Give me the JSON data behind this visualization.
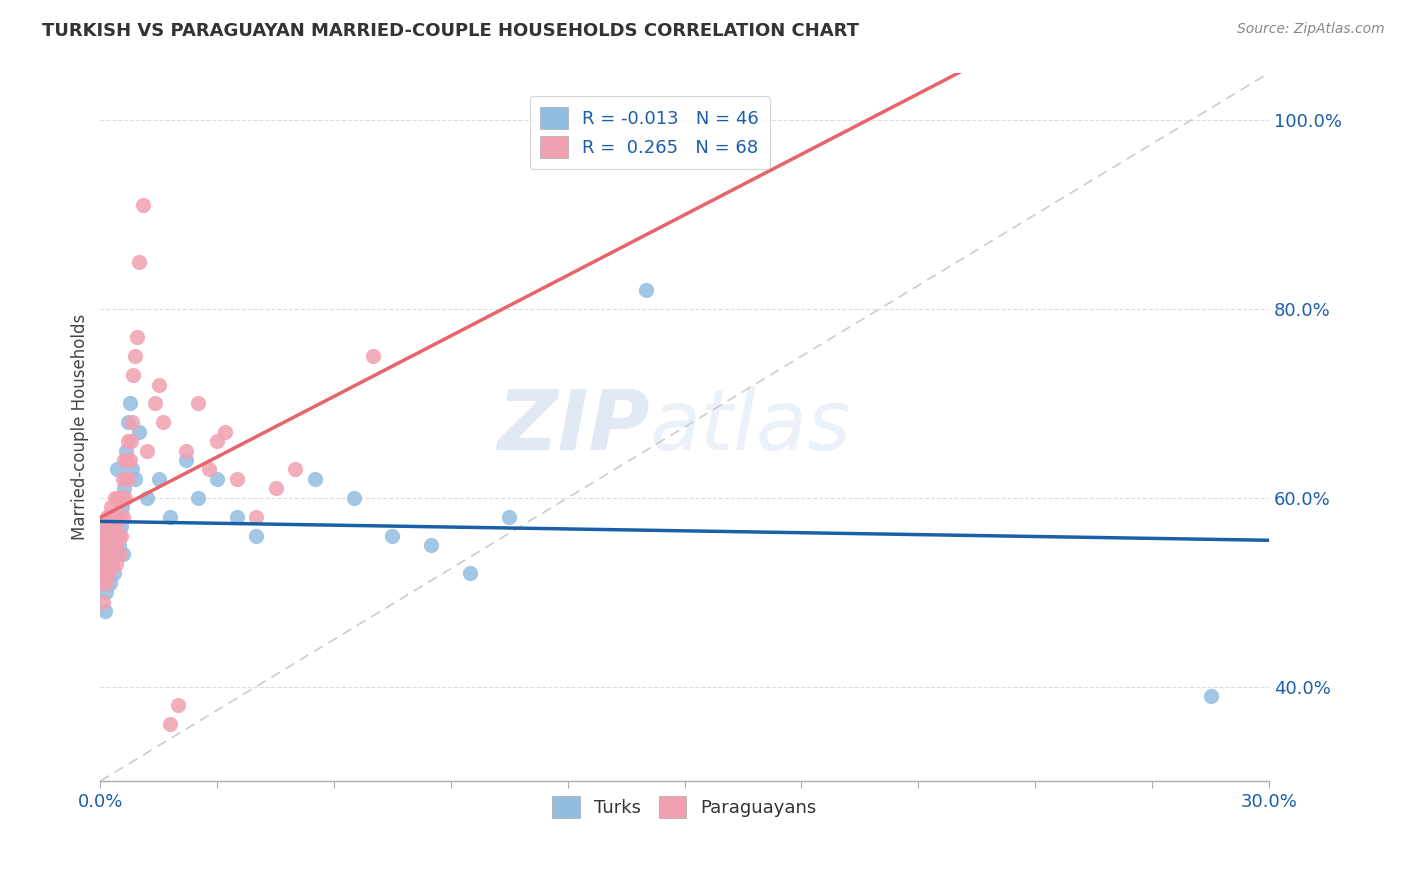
{
  "title": "TURKISH VS PARAGUAYAN MARRIED-COUPLE HOUSEHOLDS CORRELATION CHART",
  "source": "Source: ZipAtlas.com",
  "ylabel": "Married-couple Households",
  "xlim": [
    0.0,
    30.0
  ],
  "ylim": [
    30.0,
    105.0
  ],
  "yticks": [
    40.0,
    60.0,
    80.0,
    100.0
  ],
  "xticks": [
    0.0,
    3.0,
    6.0,
    9.0,
    12.0,
    15.0,
    18.0,
    21.0,
    24.0,
    27.0,
    30.0
  ],
  "blue_line_color": "#1a5fa8",
  "pink_line_color": "#e8636a",
  "blue_dot_color": "#92bce0",
  "pink_dot_color": "#f0a0b0",
  "ref_line_color": "#cccccc",
  "legend_R_blue": "-0.013",
  "legend_N_blue": "46",
  "legend_R_pink": "0.265",
  "legend_N_pink": "68",
  "watermark_zip": "ZIP",
  "watermark_atlas": "atlas",
  "background_color": "#FFFFFF",
  "grid_color": "#dddddd",
  "turks_x": [
    0.05,
    0.08,
    0.1,
    0.12,
    0.15,
    0.15,
    0.18,
    0.2,
    0.22,
    0.25,
    0.28,
    0.3,
    0.32,
    0.35,
    0.38,
    0.4,
    0.42,
    0.45,
    0.48,
    0.5,
    0.52,
    0.55,
    0.58,
    0.6,
    0.65,
    0.7,
    0.75,
    0.8,
    0.9,
    1.0,
    1.2,
    1.5,
    1.8,
    2.2,
    2.5,
    3.0,
    3.5,
    4.0,
    5.5,
    6.5,
    7.5,
    8.5,
    9.5,
    10.5,
    14.0,
    28.5
  ],
  "turks_y": [
    55.0,
    52.0,
    57.0,
    48.0,
    53.0,
    50.0,
    54.0,
    56.0,
    58.0,
    51.0,
    53.0,
    57.0,
    55.0,
    52.0,
    54.0,
    56.0,
    63.0,
    58.0,
    55.0,
    60.0,
    57.0,
    59.0,
    54.0,
    61.0,
    65.0,
    68.0,
    70.0,
    63.0,
    62.0,
    67.0,
    60.0,
    62.0,
    58.0,
    64.0,
    60.0,
    62.0,
    58.0,
    56.0,
    62.0,
    60.0,
    56.0,
    55.0,
    52.0,
    58.0,
    82.0,
    39.0
  ],
  "paraguayans_x": [
    0.02,
    0.04,
    0.05,
    0.07,
    0.08,
    0.1,
    0.1,
    0.12,
    0.13,
    0.15,
    0.15,
    0.17,
    0.18,
    0.2,
    0.2,
    0.22,
    0.23,
    0.25,
    0.25,
    0.27,
    0.28,
    0.3,
    0.32,
    0.33,
    0.35,
    0.37,
    0.38,
    0.4,
    0.4,
    0.42,
    0.45,
    0.47,
    0.5,
    0.5,
    0.52,
    0.55,
    0.57,
    0.58,
    0.6,
    0.62,
    0.65,
    0.68,
    0.7,
    0.72,
    0.75,
    0.78,
    0.8,
    0.85,
    0.9,
    0.95,
    1.0,
    1.1,
    1.2,
    1.4,
    1.5,
    1.8,
    2.0,
    2.5,
    3.0,
    3.5,
    4.0,
    5.0,
    7.0,
    1.6,
    2.2,
    2.8,
    3.2,
    4.5
  ],
  "paraguayans_y": [
    53.0,
    51.0,
    55.0,
    52.0,
    49.0,
    57.0,
    54.0,
    56.0,
    52.0,
    54.0,
    51.0,
    56.0,
    58.0,
    53.0,
    55.0,
    57.0,
    52.0,
    54.0,
    56.0,
    59.0,
    57.0,
    53.0,
    55.0,
    58.0,
    56.0,
    60.0,
    57.0,
    53.0,
    55.0,
    58.0,
    60.0,
    56.0,
    58.0,
    54.0,
    56.0,
    60.0,
    58.0,
    62.0,
    64.0,
    60.0,
    62.0,
    64.0,
    66.0,
    62.0,
    64.0,
    66.0,
    68.0,
    73.0,
    75.0,
    77.0,
    85.0,
    91.0,
    65.0,
    70.0,
    72.0,
    36.0,
    38.0,
    70.0,
    66.0,
    62.0,
    58.0,
    63.0,
    75.0,
    68.0,
    65.0,
    63.0,
    67.0,
    61.0
  ]
}
